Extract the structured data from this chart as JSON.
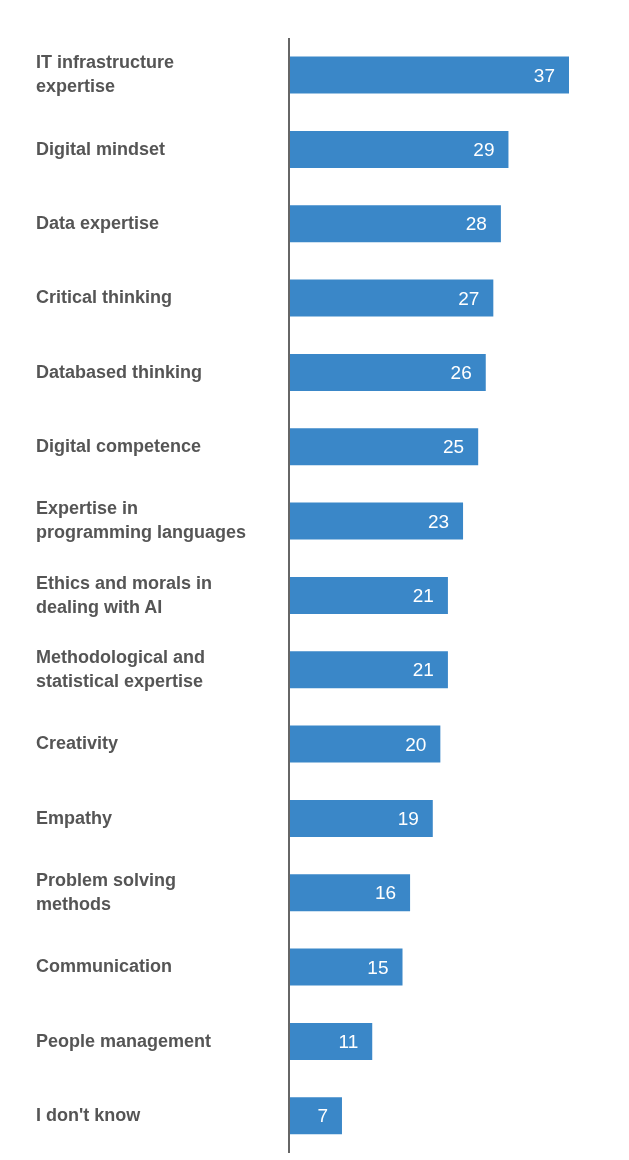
{
  "chart_data": {
    "type": "bar",
    "orientation": "horizontal",
    "categories": [
      "IT infrastructure expertise",
      "Digital mindset",
      "Data expertise",
      "Critical thinking",
      "Databased thinking",
      "Digital competence",
      "Expertise in programming languages",
      "Ethics and morals in dealing with AI",
      "Methodological and statistical expertise",
      "Creativity",
      "Empathy",
      "Problem solving methods",
      "Communication",
      "People management",
      "I don't know"
    ],
    "values": [
      37,
      29,
      28,
      27,
      26,
      25,
      23,
      21,
      21,
      20,
      19,
      16,
      15,
      11,
      7
    ],
    "color": "#3a87c8",
    "data_labels": true
  }
}
